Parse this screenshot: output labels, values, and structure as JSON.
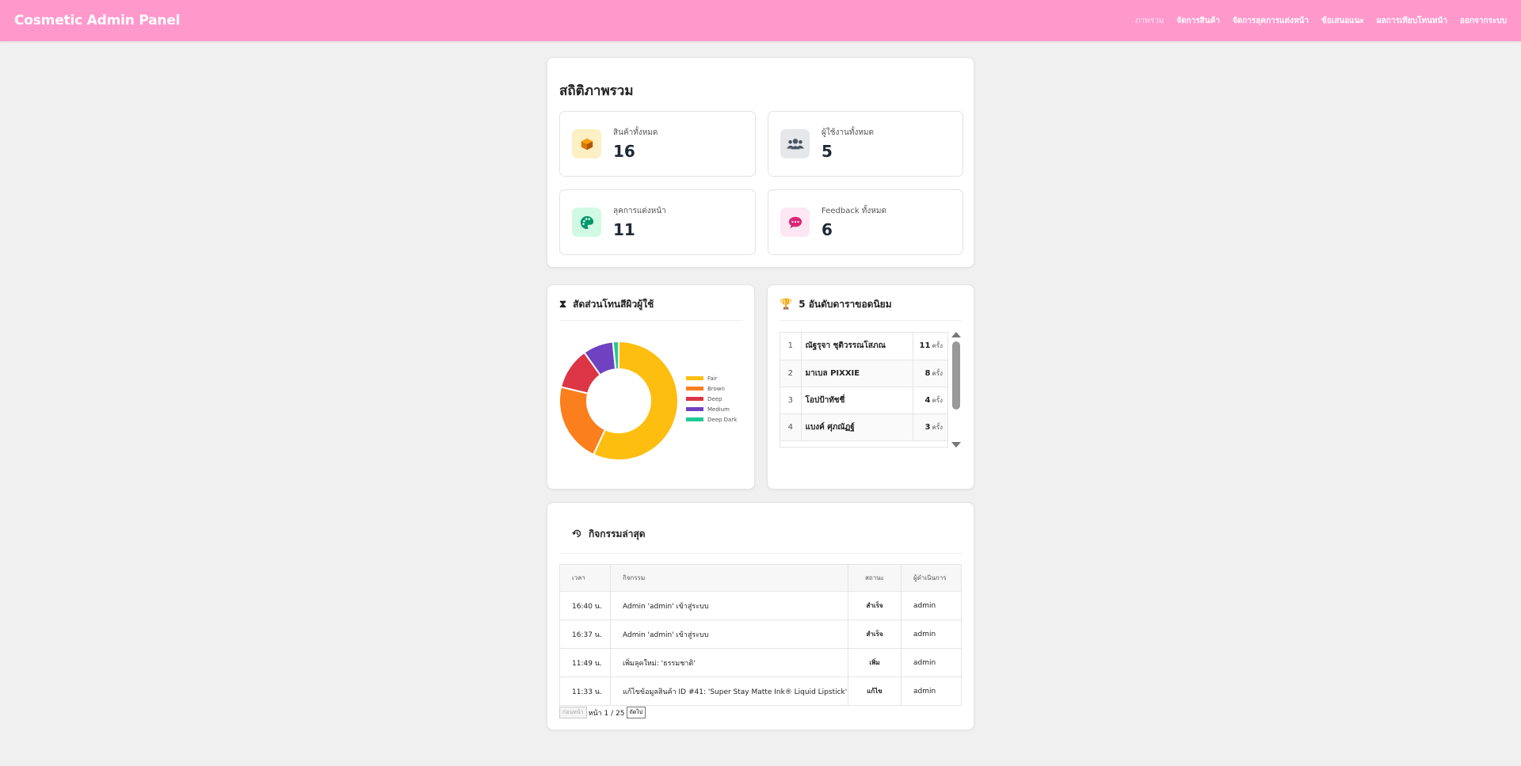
{
  "header": {
    "brand": "Cosmetic Admin Panel",
    "nav": [
      "ภาพรวม",
      "จัดการสินค้า",
      "จัดการลุคการแต่งหน้า",
      "ข้อเสนอแนะ",
      "ผลการเทียบโทนหน้า",
      "ออกจากระบบ"
    ]
  },
  "overview": {
    "title": "สถิติภาพรวม",
    "stats": [
      {
        "label": "สินค้าทั้งหมด",
        "value": "16",
        "icon": "box-icon"
      },
      {
        "label": "ผู้ใช้งานทั้งหมด",
        "value": "5",
        "icon": "users-icon"
      },
      {
        "label": "ลุคการแต่งหน้า",
        "value": "11",
        "icon": "palette-icon"
      },
      {
        "label": "Feedback ทั้งหมด",
        "value": "6",
        "icon": "chat-icon"
      }
    ]
  },
  "skin_panel": {
    "title": "สัดส่วนโทนสีผิวผู้ใช้",
    "icon": "hourglass-icon"
  },
  "chart_data": {
    "type": "pie",
    "categories": [
      "Fair",
      "Brown",
      "Deep",
      "Medium",
      "Deep Dark"
    ],
    "values": [
      55,
      21,
      11,
      8,
      1.5
    ],
    "colors": [
      "#fdbe10",
      "#fb7f1c",
      "#dc3545",
      "#6f42c1",
      "#20c997"
    ],
    "donut": true,
    "legend": "right"
  },
  "top_panel": {
    "title": "5 อันดับดาราขอดนิยม",
    "icon": "trophy-icon",
    "unit": "ครั้ง",
    "rows": [
      {
        "rank": "1",
        "name": "ณัฐรุจา ชุติวรรณโสภณ",
        "count": "11"
      },
      {
        "rank": "2",
        "name": "มาเบล PIXXIE",
        "count": "8"
      },
      {
        "rank": "3",
        "name": "โอปป้าทัชชี่",
        "count": "4"
      },
      {
        "rank": "4",
        "name": "แบงค์ ศุภณัฏฐ์",
        "count": "3"
      }
    ]
  },
  "activity": {
    "title": "กิจกรรมล่าสุด",
    "icon": "history-icon",
    "headers": [
      "เวลา",
      "กิจกรรม",
      "สถานะ",
      "ผู้ดำเนินการ"
    ],
    "rows": [
      {
        "time": "16:40 น.",
        "action": "Admin 'admin' เข้าสู่ระบบ",
        "status": "สำเร็จ",
        "user": "admin"
      },
      {
        "time": "16:37 น.",
        "action": "Admin 'admin' เข้าสู่ระบบ",
        "status": "สำเร็จ",
        "user": "admin"
      },
      {
        "time": "11:49 น.",
        "action": "เพิ่มลุคใหม่: 'ธรรมชาติ'",
        "status": "เพิ่ม",
        "user": "admin"
      },
      {
        "time": "11:33 น.",
        "action": "แก้ไขข้อมูลสินค้า ID #41: 'Super Stay Matte Ink® Liquid Lipstick'",
        "status": "แก้ไข",
        "user": "admin"
      }
    ],
    "pager": {
      "prev": "ก่อนหน้า",
      "info": "หน้า 1 / 25",
      "next": "ถัดไป"
    }
  }
}
